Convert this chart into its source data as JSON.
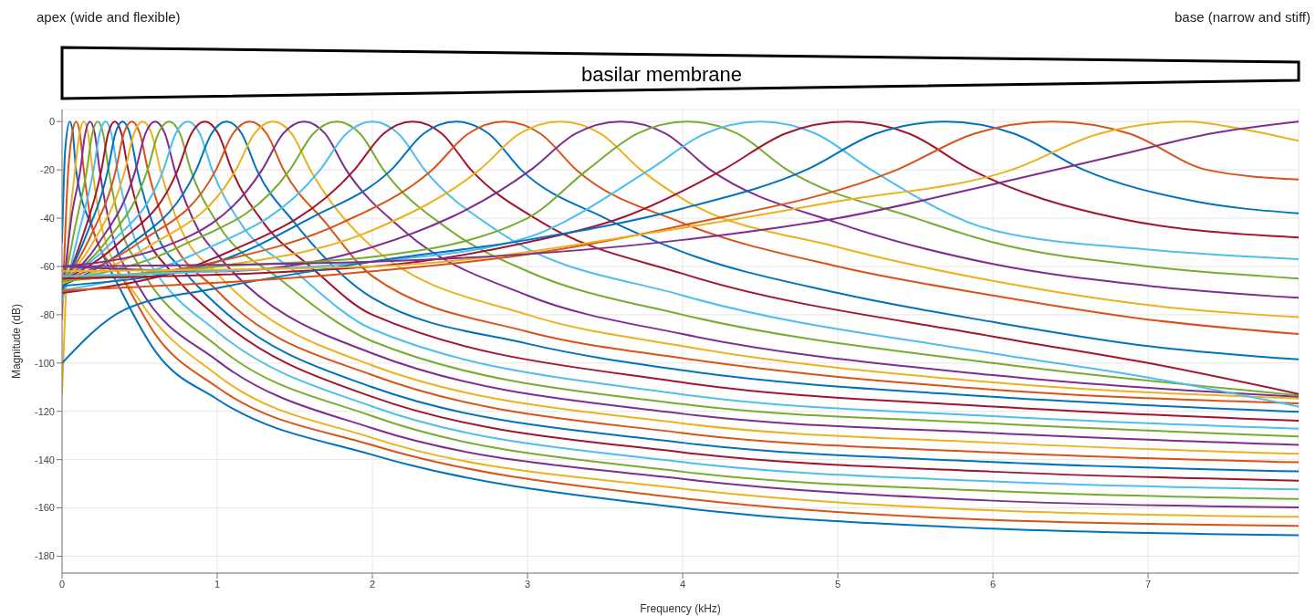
{
  "chart_data": {
    "type": "line",
    "xlabel": "Frequency (kHz)",
    "ylabel": "Magnitude (dB)",
    "annotations": [
      "apex (wide and flexible)",
      "base (narrow and stiff)",
      "basilar membrane"
    ],
    "xlim": [
      0,
      7.97
    ],
    "xticks": [
      0,
      1,
      2,
      3,
      4,
      5,
      6,
      7
    ],
    "ylim": [
      -187,
      5
    ],
    "yticks": [
      -180,
      -160,
      -140,
      -120,
      -100,
      -80,
      -60,
      -40,
      -20,
      0
    ],
    "grid": true,
    "marker": "none",
    "line_style": "solid",
    "series": [
      {
        "color": "#0072bd",
        "x": [
          0,
          0.02,
          0.05,
          0.07,
          0.09,
          0.2,
          0.38,
          0.6,
          1,
          2,
          4,
          6,
          7.97
        ],
        "values": [
          -50,
          -12,
          0,
          -5,
          -20,
          -45,
          -70,
          -95,
          -115,
          -138,
          -160,
          -168.6,
          -171.3
        ]
      },
      {
        "color": "#d95319",
        "x": [
          0,
          0.04,
          0.065,
          0.09,
          0.115,
          0.14,
          0.2,
          0.4,
          0.6,
          1,
          2,
          4,
          6,
          7.97
        ],
        "values": [
          -82,
          -20,
          -5,
          0,
          -5,
          -20,
          -45,
          -66,
          -88,
          -110,
          -134,
          -156,
          -165,
          -167.4
        ]
      },
      {
        "color": "#edb120",
        "x": [
          0,
          0.04,
          0.084,
          0.112,
          0.14,
          0.168,
          0.196,
          0.26,
          0.5,
          1,
          2,
          4,
          6,
          7.97
        ],
        "values": [
          -113,
          -50,
          -20,
          -5,
          0,
          -5,
          -20,
          -45,
          -74,
          -105,
          -131,
          -152,
          -161,
          -163.7
        ]
      },
      {
        "color": "#7e2f8e",
        "x": [
          0,
          0.06,
          0.118,
          0.149,
          0.18,
          0.211,
          0.242,
          0.316,
          0.5,
          1,
          2,
          4,
          6,
          7.97
        ],
        "values": [
          -75,
          -40,
          -20,
          -5,
          0,
          -5,
          -20,
          -45,
          -69,
          -99,
          -127,
          -148,
          -157,
          -159.8
        ]
      },
      {
        "color": "#77ac30",
        "x": [
          0,
          0.08,
          0.16,
          0.195,
          0.23,
          0.265,
          0.3,
          0.384,
          0.5,
          1,
          2,
          4,
          6,
          7.97
        ],
        "values": [
          -72,
          -45,
          -20,
          -5,
          0,
          -5,
          -20,
          -45,
          -60,
          -93,
          -122,
          -145,
          -153,
          -156.3
        ]
      },
      {
        "color": "#4dbeee",
        "x": [
          0,
          0.1,
          0.203,
          0.242,
          0.28,
          0.318,
          0.357,
          0.45,
          0.6,
          1,
          2,
          4,
          6,
          7.97
        ],
        "values": [
          -75,
          -48,
          -20,
          -5,
          0,
          -5,
          -20,
          -45,
          -62,
          -87,
          -118,
          -141,
          -149,
          -152.3
        ]
      },
      {
        "color": "#a2142f",
        "x": [
          0,
          0.12,
          0.254,
          0.297,
          0.34,
          0.383,
          0.426,
          0.53,
          0.7,
          1,
          2,
          4,
          6,
          7.97
        ],
        "values": [
          -70,
          -50,
          -20,
          -5,
          0,
          -5,
          -20,
          -45,
          -62,
          -81,
          -114,
          -137,
          -145,
          -148.7
        ]
      },
      {
        "color": "#0072bd",
        "x": [
          0,
          0.15,
          0.296,
          0.343,
          0.39,
          0.437,
          0.484,
          0.6,
          0.8,
          1,
          2,
          4,
          6,
          7.97
        ],
        "values": [
          -69,
          -48,
          -20,
          -5,
          0,
          -5,
          -20,
          -45,
          -63,
          -76,
          -110,
          -133,
          -141,
          -144.9
        ]
      },
      {
        "color": "#d95319",
        "x": [
          0,
          0.18,
          0.347,
          0.398,
          0.45,
          0.502,
          0.553,
          0.68,
          1,
          2,
          4,
          6,
          7.97
        ],
        "values": [
          -68,
          -48,
          -20,
          -5,
          0,
          -5,
          -20,
          -45,
          -70,
          -105,
          -129,
          -137,
          -141.1
        ]
      },
      {
        "color": "#edb120",
        "x": [
          0,
          0.2,
          0.406,
          0.463,
          0.52,
          0.577,
          0.634,
          0.77,
          1,
          2,
          4,
          6,
          7.97
        ],
        "values": [
          -67,
          -50,
          -20,
          -5,
          0,
          -5,
          -20,
          -45,
          -63,
          -101,
          -125,
          -133,
          -137.6
        ]
      },
      {
        "color": "#7e2f8e",
        "x": [
          0,
          0.24,
          0.474,
          0.537,
          0.6,
          0.663,
          0.726,
          0.88,
          1,
          2,
          4,
          6,
          7.97
        ],
        "values": [
          -67,
          -50,
          -20,
          -5,
          0,
          -5,
          -20,
          -45,
          -55,
          -96,
          -121,
          -129,
          -133.9
        ]
      },
      {
        "color": "#77ac30",
        "x": [
          0,
          0.28,
          0.551,
          0.62,
          0.69,
          0.76,
          0.829,
          1,
          1.4,
          2,
          4,
          6,
          7.97
        ],
        "values": [
          -66,
          -50,
          -20,
          -5,
          0,
          -5,
          -20,
          -42,
          -65,
          -91,
          -117,
          -125,
          -130.4
        ]
      },
      {
        "color": "#4dbeee",
        "x": [
          0,
          0.32,
          0.653,
          0.732,
          0.81,
          0.888,
          0.967,
          1.15,
          1.5,
          2,
          4,
          6,
          7.97
        ],
        "values": [
          -66,
          -50,
          -20,
          -5,
          0,
          -5,
          -20,
          -42,
          -62,
          -86,
          -113,
          -122,
          -127.2
        ]
      },
      {
        "color": "#a2142f",
        "x": [
          0,
          0.37,
          0.746,
          0.833,
          0.92,
          1.007,
          1.094,
          1.3,
          1.6,
          2,
          4,
          6,
          7.97
        ],
        "values": [
          -66,
          -50,
          -20,
          -5,
          0,
          -5,
          -20,
          -42,
          -60,
          -80,
          -108,
          -118,
          -123.9
        ]
      },
      {
        "color": "#0072bd",
        "x": [
          0,
          0.42,
          0.865,
          0.963,
          1.06,
          1.158,
          1.255,
          1.5,
          2,
          3,
          4,
          6,
          7.97
        ],
        "values": [
          -68,
          -52,
          -20,
          -5,
          0,
          -5,
          -20,
          -42,
          -73,
          -92,
          -103,
          -114,
          -120.2
        ]
      },
      {
        "color": "#d95319",
        "x": [
          0,
          0.5,
          0.992,
          1.101,
          1.21,
          1.319,
          1.428,
          1.7,
          2,
          3,
          4,
          6,
          7.97
        ],
        "values": [
          -66,
          -50,
          -20,
          -5,
          0,
          -5,
          -20,
          -42,
          -64,
          -87,
          -98,
          -111,
          -116.7
        ]
      },
      {
        "color": "#edb120",
        "x": [
          0,
          0.55,
          1.12,
          1.24,
          1.36,
          1.48,
          1.6,
          2,
          3,
          4,
          6,
          7.97
        ],
        "values": [
          -67,
          -52,
          -20,
          -5,
          0,
          -5,
          -20,
          -52,
          -80,
          -93,
          -108,
          -114.7
        ]
      },
      {
        "color": "#7e2f8e",
        "x": [
          0,
          0.65,
          1.289,
          1.425,
          1.56,
          1.695,
          1.831,
          2.2,
          3,
          4,
          6,
          7.97
        ],
        "values": [
          -60,
          -52,
          -20,
          -5,
          0,
          -5,
          -20,
          -45,
          -72,
          -88,
          -105,
          -114
        ]
      },
      {
        "color": "#77ac30",
        "x": [
          0,
          0.75,
          1.468,
          1.619,
          1.77,
          1.921,
          2.072,
          2.5,
          3,
          4,
          6,
          7.97
        ],
        "values": [
          -66,
          -52,
          -20,
          -5,
          0,
          -5,
          -20,
          -45,
          -62,
          -80,
          -100,
          -113.4
        ]
      },
      {
        "color": "#4dbeee",
        "x": [
          0,
          0.85,
          1.663,
          1.832,
          2,
          2.168,
          2.337,
          2.8,
          4,
          6,
          7,
          7.97
        ],
        "values": [
          -70,
          -55,
          -20,
          -5,
          0,
          -5,
          -20,
          -45,
          -72,
          -96,
          -106,
          -118
        ]
      },
      {
        "color": "#a2142f",
        "x": [
          0,
          1,
          1.884,
          2.072,
          2.26,
          2.448,
          2.636,
          3.1,
          4,
          6,
          7,
          7.97
        ],
        "values": [
          -71,
          -56,
          -20,
          -5,
          0,
          -5,
          -20,
          -42,
          -63,
          -89,
          -100,
          -112.8
        ]
      },
      {
        "color": "#0072bd",
        "x": [
          0,
          1,
          1.6,
          2.121,
          2.33,
          2.54,
          2.75,
          2.959,
          3.5,
          4,
          5,
          6,
          7,
          7.97
        ],
        "values": [
          -68,
          -58,
          -40,
          -20,
          -5,
          0,
          -5,
          -20,
          -40,
          -54,
          -71,
          -83,
          -93,
          -98.5
        ]
      },
      {
        "color": "#d95319",
        "x": [
          0,
          1,
          1.8,
          2.385,
          2.618,
          2.85,
          3.083,
          3.315,
          4,
          5,
          6,
          7,
          7.97
        ],
        "values": [
          -66,
          -58,
          -42,
          -20,
          -5,
          0,
          -5,
          -20,
          -42,
          -60,
          -72,
          -82,
          -88
        ]
      },
      {
        "color": "#edb120",
        "x": [
          0,
          1,
          2,
          2.69,
          2.95,
          3.21,
          3.47,
          3.73,
          4,
          5,
          6,
          7,
          7.97
        ],
        "values": [
          -65,
          -60,
          -45,
          -20,
          -5,
          0,
          -5,
          -20,
          -32,
          -52,
          -66,
          -76,
          -81
        ]
      },
      {
        "color": "#7e2f8e",
        "x": [
          0,
          1,
          2,
          3.021,
          3.31,
          3.6,
          3.89,
          4.179,
          5,
          6,
          7,
          7.97
        ],
        "values": [
          -60,
          -62,
          -52,
          -20,
          -5,
          0,
          -5,
          -20,
          -42,
          -59,
          -68,
          -73
        ]
      },
      {
        "color": "#77ac30",
        "x": [
          0,
          1,
          2,
          3,
          3.386,
          3.708,
          4.03,
          4.352,
          4.674,
          5.5,
          6,
          7,
          7.97
        ],
        "values": [
          -66,
          -60,
          -56,
          -40,
          -20,
          -5,
          0,
          -5,
          -20,
          -40,
          -50,
          -60,
          -65
        ]
      },
      {
        "color": "#4dbeee",
        "x": [
          0,
          1,
          2,
          3,
          3.785,
          4.143,
          4.5,
          4.858,
          5.215,
          6,
          7,
          7.97
        ],
        "values": [
          -64,
          -62,
          -58,
          -48,
          -20,
          -5,
          0,
          -5,
          -20,
          -45,
          -53,
          -57
        ]
      },
      {
        "color": "#a2142f",
        "x": [
          0,
          2,
          3,
          3.6,
          4.26,
          4.66,
          5.06,
          5.46,
          5.86,
          6.8,
          7.97
        ],
        "values": [
          -65,
          -60,
          -50,
          -40,
          -20,
          -5,
          0,
          -5,
          -20,
          -40,
          -48
        ]
      },
      {
        "color": "#0072bd",
        "x": [
          0,
          0.4,
          1,
          2,
          3,
          4,
          4.796,
          5.243,
          5.69,
          6.137,
          6.584,
          7.3,
          7.97
        ],
        "values": [
          -100,
          -78,
          -69,
          -58,
          -49,
          -36,
          -20,
          -5,
          0,
          -5,
          -20,
          -33,
          -38
        ]
      },
      {
        "color": "#d95319",
        "x": [
          0,
          2,
          3,
          4,
          5.38,
          5.88,
          6.38,
          6.88,
          7.38,
          7.97
        ],
        "values": [
          -70,
          -62,
          -55,
          -43,
          -20,
          -5,
          0,
          -5,
          -20,
          -24
        ]
      },
      {
        "color": "#edb120",
        "x": [
          0,
          2,
          4,
          5,
          6.12,
          6.685,
          7.25,
          7.6,
          7.97
        ],
        "values": [
          -62,
          -60,
          -44,
          -33,
          -20,
          -5,
          0,
          -3,
          -8
        ]
      },
      {
        "color": "#7e2f8e",
        "x": [
          0,
          2,
          4,
          5,
          6,
          6.8,
          7.4,
          7.97
        ],
        "values": [
          -60,
          -58,
          -49,
          -40,
          -26,
          -14,
          -5,
          0
        ]
      }
    ]
  }
}
